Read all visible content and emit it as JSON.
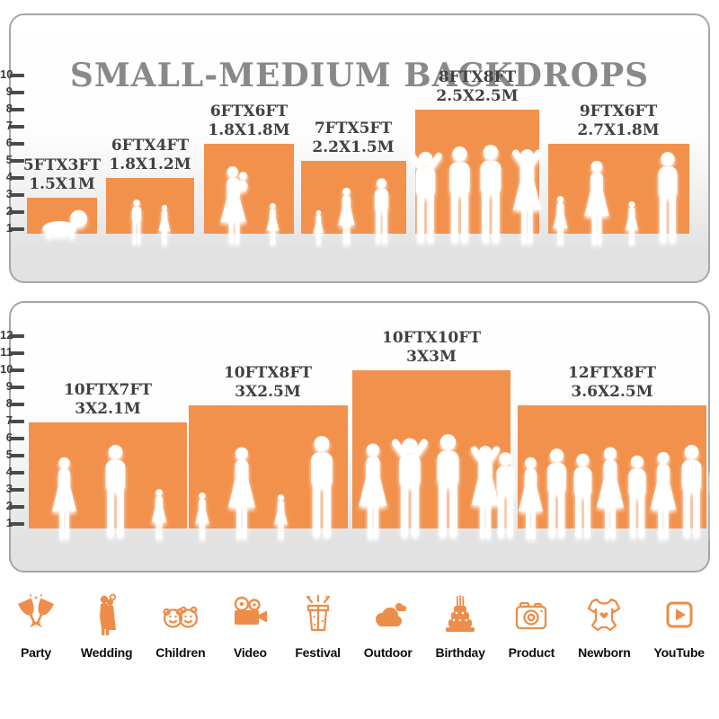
{
  "title": "SMALL-MEDIUM BACKDROPS",
  "colors": {
    "backdrop_orange": "#f2914c",
    "icon_orange": "#ed8d49",
    "title_gray": "#898989",
    "label_dark": "#414141",
    "panel_floor_gray": "#e2e2e2"
  },
  "panels": [
    {
      "name": "small-backdrops",
      "ruler_min": 1,
      "ruler_max": 10,
      "items": [
        {
          "size_ft": "5FTX3FT",
          "size_m": "1.5X1M",
          "height_ft": 3,
          "width_ft": 5,
          "people": "crawling baby"
        },
        {
          "size_ft": "6FTX4FT",
          "size_m": "1.8X1.2M",
          "height_ft": 4,
          "width_ft": 6,
          "people": "boy and girl"
        },
        {
          "size_ft": "6FTX6FT",
          "size_m": "1.8X1.8M",
          "height_ft": 6,
          "width_ft": 6,
          "people": "mother holding baby with girl"
        },
        {
          "size_ft": "7FTX5FT",
          "size_m": "2.2X1.5M",
          "height_ft": 5,
          "width_ft": 7,
          "people": "child, woman and man"
        },
        {
          "size_ft": "8FTX8FT",
          "size_m": "2.5X2.5M",
          "height_ft": 8,
          "width_ft": 8,
          "people": "four adults"
        },
        {
          "size_ft": "9FTX6FT",
          "size_m": "2.7X1.8M",
          "height_ft": 6,
          "width_ft": 9,
          "people": "family of four"
        }
      ]
    },
    {
      "name": "medium-backdrops",
      "ruler_min": 1,
      "ruler_max": 12,
      "items": [
        {
          "size_ft": "10FTX7FT",
          "size_m": "3X2.1M",
          "height_ft": 7,
          "width_ft": 10,
          "people": "woman, man and girl"
        },
        {
          "size_ft": "10FTX8FT",
          "size_m": "3X2.5M",
          "height_ft": 8,
          "width_ft": 10,
          "people": "family of four"
        },
        {
          "size_ft": "10FTX10FT",
          "size_m": "3X3M",
          "height_ft": 10,
          "width_ft": 10,
          "people": "group of four adults"
        },
        {
          "size_ft": "12FTX8FT",
          "size_m": "3.6X2.5M",
          "height_ft": 8,
          "width_ft": 12,
          "people": "crowd of nine"
        }
      ]
    }
  ],
  "categories": [
    {
      "label": "Party",
      "icon": "party-icon"
    },
    {
      "label": "Wedding",
      "icon": "wedding-icon"
    },
    {
      "label": "Children",
      "icon": "children-icon"
    },
    {
      "label": "Video",
      "icon": "video-icon"
    },
    {
      "label": "Festival",
      "icon": "festival-icon"
    },
    {
      "label": "Outdoor",
      "icon": "outdoor-icon"
    },
    {
      "label": "Birthday",
      "icon": "birthday-icon"
    },
    {
      "label": "Product",
      "icon": "product-icon"
    },
    {
      "label": "Newborn",
      "icon": "newborn-icon"
    },
    {
      "label": "YouTube",
      "icon": "youtube-icon"
    }
  ]
}
